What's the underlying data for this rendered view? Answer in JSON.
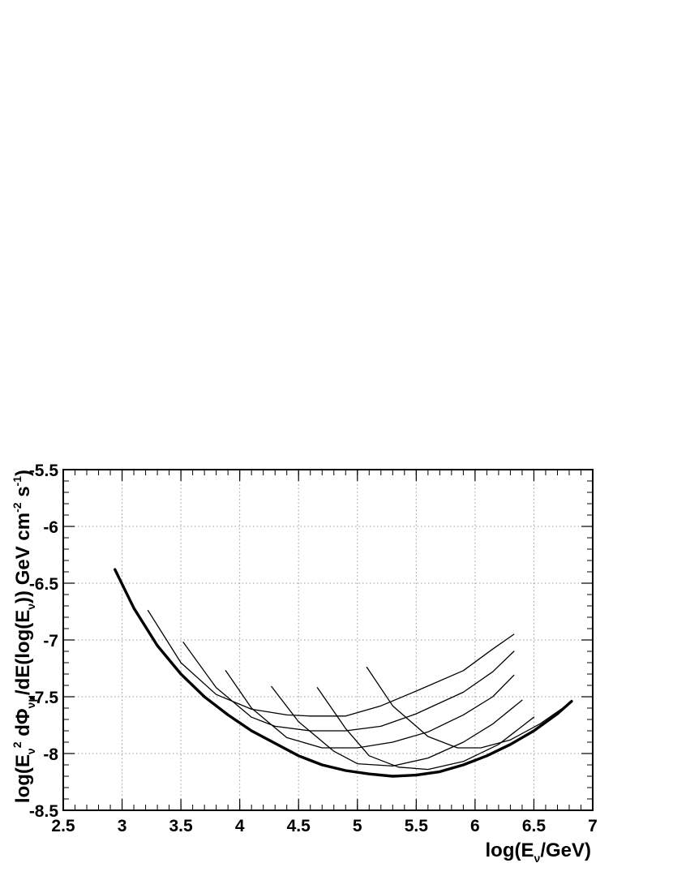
{
  "chart_data": {
    "type": "line",
    "title": "",
    "xlabel": "log(E_ν/GeV)",
    "ylabel": "log(E_ν² dΦ_νμ/dE(log(E_ν)) GeV cm⁻² s⁻¹)",
    "xlim": [
      2.5,
      7
    ],
    "ylim": [
      -8.5,
      -5.5
    ],
    "x_ticks": [
      "2.5",
      "3",
      "3.5",
      "4",
      "4.5",
      "5",
      "5.5",
      "6",
      "6.5",
      "7"
    ],
    "y_ticks": [
      "-8.5",
      "-8",
      "-7.5",
      "-7",
      "-6.5",
      "-6",
      "-5.5"
    ],
    "grid": true,
    "legend": "none",
    "series": [
      {
        "style": "thick",
        "points": [
          [
            2.94,
            -6.38
          ],
          [
            3.1,
            -6.72
          ],
          [
            3.3,
            -7.05
          ],
          [
            3.5,
            -7.3
          ],
          [
            3.7,
            -7.5
          ],
          [
            3.9,
            -7.66
          ],
          [
            4.1,
            -7.8
          ],
          [
            4.3,
            -7.91
          ],
          [
            4.5,
            -8.02
          ],
          [
            4.7,
            -8.1
          ],
          [
            4.9,
            -8.15
          ],
          [
            5.1,
            -8.18
          ],
          [
            5.3,
            -8.2
          ],
          [
            5.5,
            -8.19
          ],
          [
            5.7,
            -8.16
          ],
          [
            5.9,
            -8.1
          ],
          [
            6.1,
            -8.02
          ],
          [
            6.3,
            -7.92
          ],
          [
            6.5,
            -7.8
          ],
          [
            6.7,
            -7.65
          ],
          [
            6.82,
            -7.54
          ]
        ]
      },
      {
        "style": "thin",
        "points": [
          [
            3.22,
            -6.74
          ],
          [
            3.5,
            -7.2
          ],
          [
            3.8,
            -7.48
          ],
          [
            4.1,
            -7.61
          ],
          [
            4.4,
            -7.66
          ],
          [
            4.6,
            -7.67
          ],
          [
            4.9,
            -7.67
          ],
          [
            5.2,
            -7.58
          ],
          [
            5.5,
            -7.45
          ],
          [
            5.9,
            -7.27
          ],
          [
            6.15,
            -7.08
          ],
          [
            6.33,
            -6.95
          ]
        ]
      },
      {
        "style": "thin",
        "points": [
          [
            3.52,
            -7.02
          ],
          [
            3.8,
            -7.42
          ],
          [
            4.1,
            -7.68
          ],
          [
            4.3,
            -7.76
          ],
          [
            4.6,
            -7.8
          ],
          [
            4.9,
            -7.8
          ],
          [
            5.2,
            -7.76
          ],
          [
            5.5,
            -7.65
          ],
          [
            5.9,
            -7.46
          ],
          [
            6.15,
            -7.28
          ],
          [
            6.33,
            -7.1
          ]
        ]
      },
      {
        "style": "thin",
        "points": [
          [
            3.88,
            -7.27
          ],
          [
            4.1,
            -7.6
          ],
          [
            4.4,
            -7.86
          ],
          [
            4.7,
            -7.95
          ],
          [
            5.0,
            -7.95
          ],
          [
            5.3,
            -7.9
          ],
          [
            5.6,
            -7.81
          ],
          [
            5.9,
            -7.66
          ],
          [
            6.15,
            -7.5
          ],
          [
            6.33,
            -7.31
          ]
        ]
      },
      {
        "style": "thin",
        "points": [
          [
            4.27,
            -7.41
          ],
          [
            4.5,
            -7.72
          ],
          [
            4.8,
            -7.98
          ],
          [
            5.0,
            -8.09
          ],
          [
            5.3,
            -8.11
          ],
          [
            5.6,
            -8.04
          ],
          [
            5.9,
            -7.9
          ],
          [
            6.15,
            -7.74
          ],
          [
            6.4,
            -7.53
          ]
        ]
      },
      {
        "style": "thin",
        "points": [
          [
            4.66,
            -7.42
          ],
          [
            4.9,
            -7.78
          ],
          [
            5.1,
            -8.02
          ],
          [
            5.35,
            -8.12
          ],
          [
            5.6,
            -8.14
          ],
          [
            5.9,
            -8.07
          ],
          [
            6.2,
            -7.92
          ],
          [
            6.5,
            -7.68
          ]
        ]
      },
      {
        "style": "thin",
        "points": [
          [
            5.08,
            -7.24
          ],
          [
            5.3,
            -7.58
          ],
          [
            5.6,
            -7.85
          ],
          [
            5.85,
            -7.95
          ],
          [
            6.05,
            -7.95
          ],
          [
            6.3,
            -7.88
          ],
          [
            6.55,
            -7.74
          ],
          [
            6.8,
            -7.56
          ]
        ]
      }
    ]
  }
}
